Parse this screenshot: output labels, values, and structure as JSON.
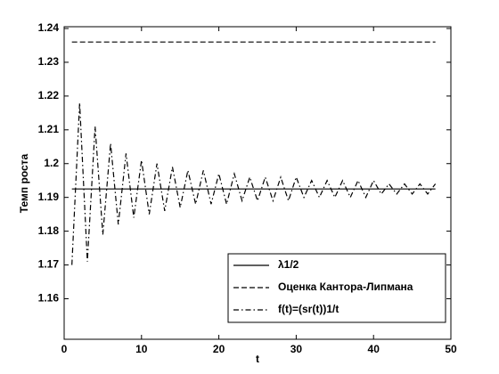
{
  "chart_data": {
    "type": "line",
    "xlabel": "t",
    "ylabel": "Темп роста",
    "x": [
      1,
      2,
      3,
      4,
      5,
      6,
      7,
      8,
      9,
      10,
      11,
      12,
      13,
      14,
      15,
      16,
      17,
      18,
      19,
      20,
      21,
      22,
      23,
      24,
      25,
      26,
      27,
      28,
      29,
      30,
      31,
      32,
      33,
      34,
      35,
      36,
      37,
      38,
      39,
      40,
      41,
      42,
      43,
      44,
      45,
      46,
      47,
      48
    ],
    "series": [
      {
        "name": "λ1/2",
        "color": "#000000",
        "style": "solid",
        "values": [
          1.1925,
          1.1925,
          1.1925,
          1.1925,
          1.1925,
          1.1925,
          1.1925,
          1.1925,
          1.1925,
          1.1925,
          1.1925,
          1.1925,
          1.1925,
          1.1925,
          1.1925,
          1.1925,
          1.1925,
          1.1925,
          1.1925,
          1.1925,
          1.1925,
          1.1925,
          1.1925,
          1.1925,
          1.1925,
          1.1925,
          1.1925,
          1.1925,
          1.1925,
          1.1925,
          1.1925,
          1.1925,
          1.1925,
          1.1925,
          1.1925,
          1.1925,
          1.1925,
          1.1925,
          1.1925,
          1.1925,
          1.1925,
          1.1925,
          1.1925,
          1.1925,
          1.1925,
          1.1925,
          1.1925,
          1.1925
        ]
      },
      {
        "name": "Оценка Кантора-Липмана",
        "color": "#000000",
        "style": "dashed",
        "values": [
          1.236,
          1.236,
          1.236,
          1.236,
          1.236,
          1.236,
          1.236,
          1.236,
          1.236,
          1.236,
          1.236,
          1.236,
          1.236,
          1.236,
          1.236,
          1.236,
          1.236,
          1.236,
          1.236,
          1.236,
          1.236,
          1.236,
          1.236,
          1.236,
          1.236,
          1.236,
          1.236,
          1.236,
          1.236,
          1.236,
          1.236,
          1.236,
          1.236,
          1.236,
          1.236,
          1.236,
          1.236,
          1.236,
          1.236,
          1.236,
          1.236,
          1.236,
          1.236,
          1.236,
          1.236,
          1.236,
          1.236,
          1.236
        ]
      },
      {
        "name": "f(t)=(sr(t))1/t",
        "color": "#000000",
        "style": "dashdot",
        "values": [
          1.17,
          1.218,
          1.171,
          1.211,
          1.179,
          1.206,
          1.182,
          1.203,
          1.184,
          1.201,
          1.185,
          1.2,
          1.186,
          1.199,
          1.187,
          1.198,
          1.188,
          1.198,
          1.188,
          1.197,
          1.188,
          1.197,
          1.189,
          1.196,
          1.189,
          1.196,
          1.189,
          1.196,
          1.189,
          1.196,
          1.19,
          1.195,
          1.19,
          1.195,
          1.19,
          1.195,
          1.19,
          1.195,
          1.19,
          1.195,
          1.191,
          1.194,
          1.191,
          1.194,
          1.191,
          1.194,
          1.191,
          1.194
        ]
      }
    ],
    "xlim": [
      0,
      50
    ],
    "xticks": [
      0,
      10,
      20,
      30,
      40,
      50
    ],
    "ylim": [
      1.148,
      1.24
    ],
    "yticks": [
      1.16,
      1.17,
      1.18,
      1.19,
      1.2,
      1.21,
      1.22,
      1.23,
      1.24
    ],
    "legend": "lower right"
  }
}
